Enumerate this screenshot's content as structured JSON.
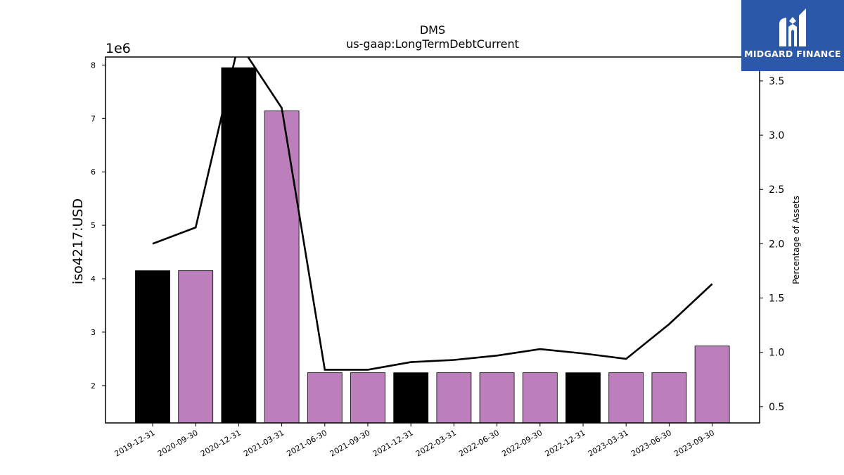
{
  "chart_data": {
    "type": "bar",
    "title": "DMS",
    "subtitle": "us-gaap:LongTermDebtCurrent",
    "ylabel": "iso4217:USD",
    "y_multiplier": "1e6",
    "y2label": "Percentage of Assets",
    "categories": [
      "2019-12-31",
      "2020-09-30",
      "2020-12-31",
      "2021-03-31",
      "2021-06-30",
      "2021-09-30",
      "2021-12-31",
      "2022-03-31",
      "2022-06-30",
      "2022-09-30",
      "2022-12-31",
      "2023-03-31",
      "2023-06-30",
      "2023-09-30"
    ],
    "values": [
      4.15,
      4.15,
      7.95,
      7.14,
      2.24,
      2.24,
      2.24,
      2.24,
      2.24,
      2.24,
      2.24,
      2.24,
      2.24,
      2.74
    ],
    "bar_colors": [
      "#000000",
      "#bc7fbc",
      "#000000",
      "#bc7fbc",
      "#bc7fbc",
      "#bc7fbc",
      "#000000",
      "#bc7fbc",
      "#bc7fbc",
      "#bc7fbc",
      "#000000",
      "#bc7fbc",
      "#bc7fbc",
      "#bc7fbc"
    ],
    "line_values": [
      2.0,
      2.15,
      3.85,
      3.25,
      0.84,
      0.84,
      0.91,
      0.93,
      0.97,
      1.03,
      0.99,
      0.94,
      1.26,
      1.63
    ],
    "ylim": [
      1.3,
      8.15
    ],
    "y2lim": [
      0.35,
      3.72
    ],
    "yticks": [
      2,
      3,
      4,
      5,
      6,
      7,
      8
    ],
    "y2ticks": [
      "0.5",
      "1.0",
      "1.5",
      "2.0",
      "2.5",
      "3.0",
      "3.5"
    ],
    "grid": false
  },
  "logo": {
    "text": "MIDGARD FINANCE",
    "icon": "midgard-logo-icon",
    "bg_color": "#2b58a8"
  }
}
